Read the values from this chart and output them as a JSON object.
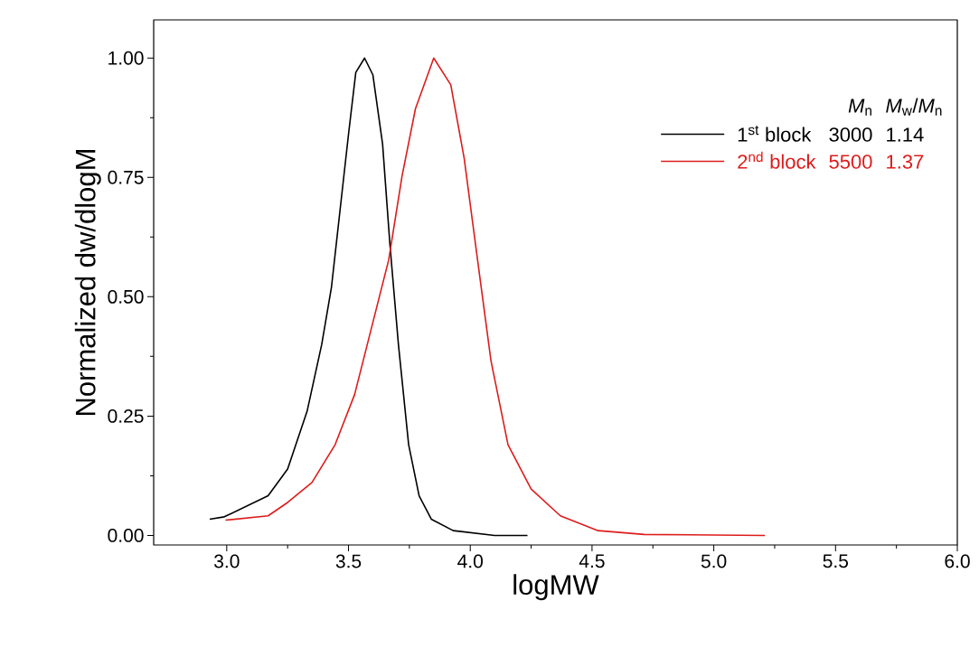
{
  "chart_data": {
    "type": "line",
    "xlabel": "logMW",
    "ylabel": "Normalized dw/dlogM",
    "xlim": [
      2.7,
      6.0
    ],
    "xticks": [
      {
        "value": 3,
        "label": "3.0"
      },
      3.5,
      {
        "value": 4,
        "label": "4.0"
      },
      4.5,
      {
        "value": 5,
        "label": "5.0"
      },
      5.5,
      {
        "value": 6,
        "label": "6.0"
      }
    ],
    "ylim": [
      -0.02,
      1.08
    ],
    "yticks": [
      {
        "value": 0,
        "label": "0.00"
      },
      {
        "value": 0.25,
        "label": "0.25"
      },
      {
        "value": 0.5,
        "label": "0.50"
      },
      {
        "value": 0.75,
        "label": "0.75"
      },
      {
        "value": 1.0,
        "label": "1.00"
      }
    ],
    "legend": "top right",
    "grid": false,
    "marker": "none",
    "line_style": "solid",
    "annotations": [
      "*M*$_{n}$",
      "*M*$_{w}$/*M*$_{n}$",
      "3000",
      "1.14",
      "5500",
      "1.37"
    ],
    "series": [
      {
        "name": "1$^{st}$ block",
        "color": "#000000",
        "x": [
          2.93,
          2.99,
          3.17,
          3.25,
          3.33,
          3.39,
          3.43,
          3.465,
          3.5,
          3.53,
          3.566,
          3.6,
          3.64,
          3.67,
          3.705,
          3.747,
          3.79,
          3.84,
          3.93,
          4.1,
          4.235
        ],
        "values": [
          0.034,
          0.039,
          0.083,
          0.139,
          0.26,
          0.4,
          0.52,
          0.68,
          0.84,
          0.97,
          1.0,
          0.965,
          0.82,
          0.61,
          0.4,
          0.19,
          0.083,
          0.034,
          0.01,
          0.0,
          0.0
        ]
      },
      {
        "name": "2$^{nd}$ block",
        "color": "#dd1c1c",
        "x": [
          2.995,
          3.17,
          3.25,
          3.35,
          3.445,
          3.525,
          3.595,
          3.665,
          3.72,
          3.775,
          3.85,
          3.92,
          3.975,
          4.03,
          4.085,
          4.155,
          4.25,
          4.37,
          4.525,
          4.715,
          5.21
        ],
        "values": [
          0.032,
          0.041,
          0.069,
          0.111,
          0.19,
          0.295,
          0.436,
          0.577,
          0.753,
          0.894,
          1.0,
          0.944,
          0.79,
          0.577,
          0.366,
          0.19,
          0.097,
          0.041,
          0.01,
          0.002,
          0.0
        ]
      }
    ]
  }
}
